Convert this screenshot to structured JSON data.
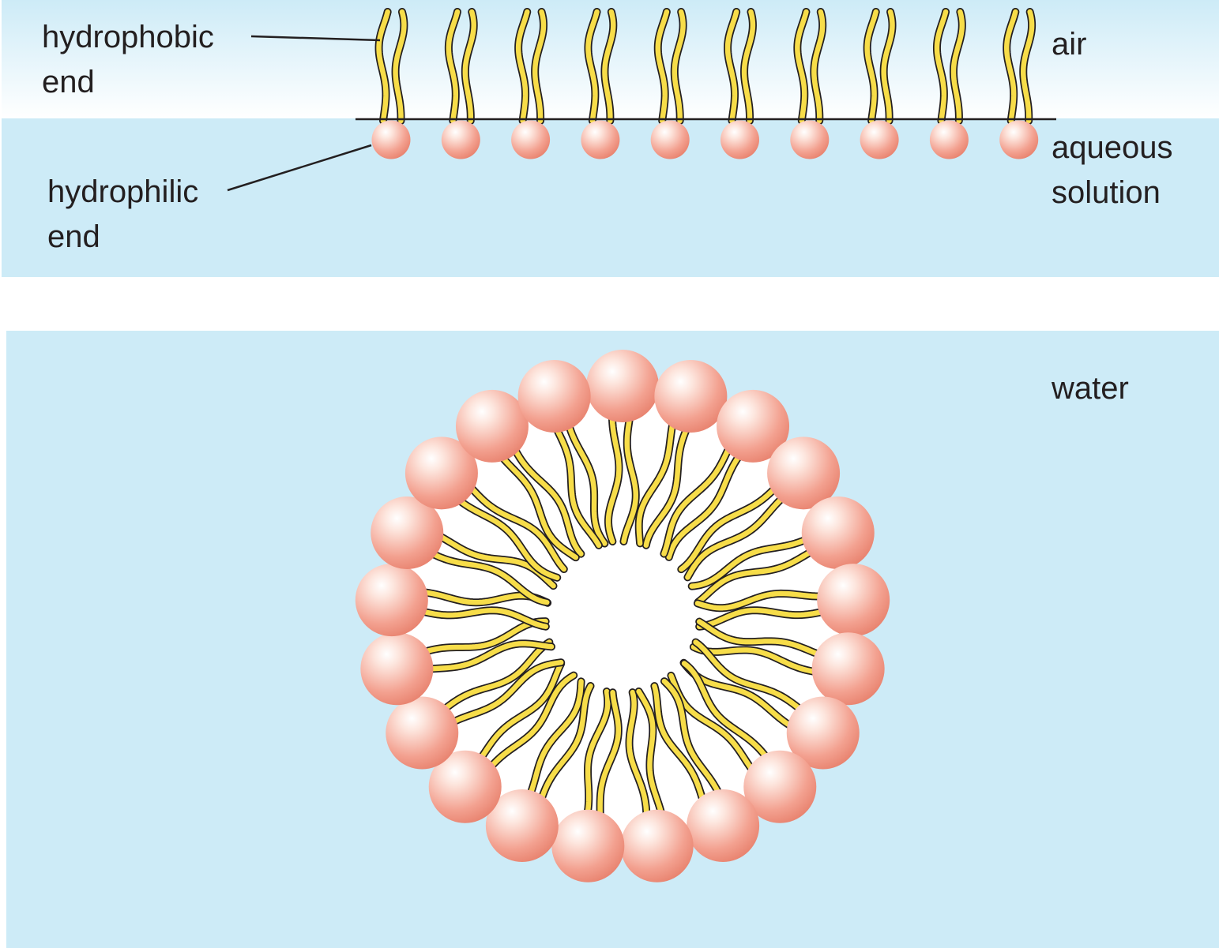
{
  "top_panel": {
    "labels": {
      "hydrophobic_line1": "hydrophobic",
      "hydrophobic_line2": "end",
      "hydrophilic_line1": "hydrophilic",
      "hydrophilic_line2": "end",
      "air": "air",
      "aqueous_line1": "aqueous",
      "aqueous_line2": "solution"
    },
    "molecule_count": 10
  },
  "bottom_panel": {
    "labels": {
      "water": "water"
    },
    "head_count": 21,
    "tails_per_head": 2
  },
  "colors": {
    "water": "#cdebf7",
    "air_top": "#ffffff",
    "head": "#f3a190",
    "head_highlight": "#fde6de",
    "tail": "#f7dd49",
    "outline": "#231f20"
  }
}
